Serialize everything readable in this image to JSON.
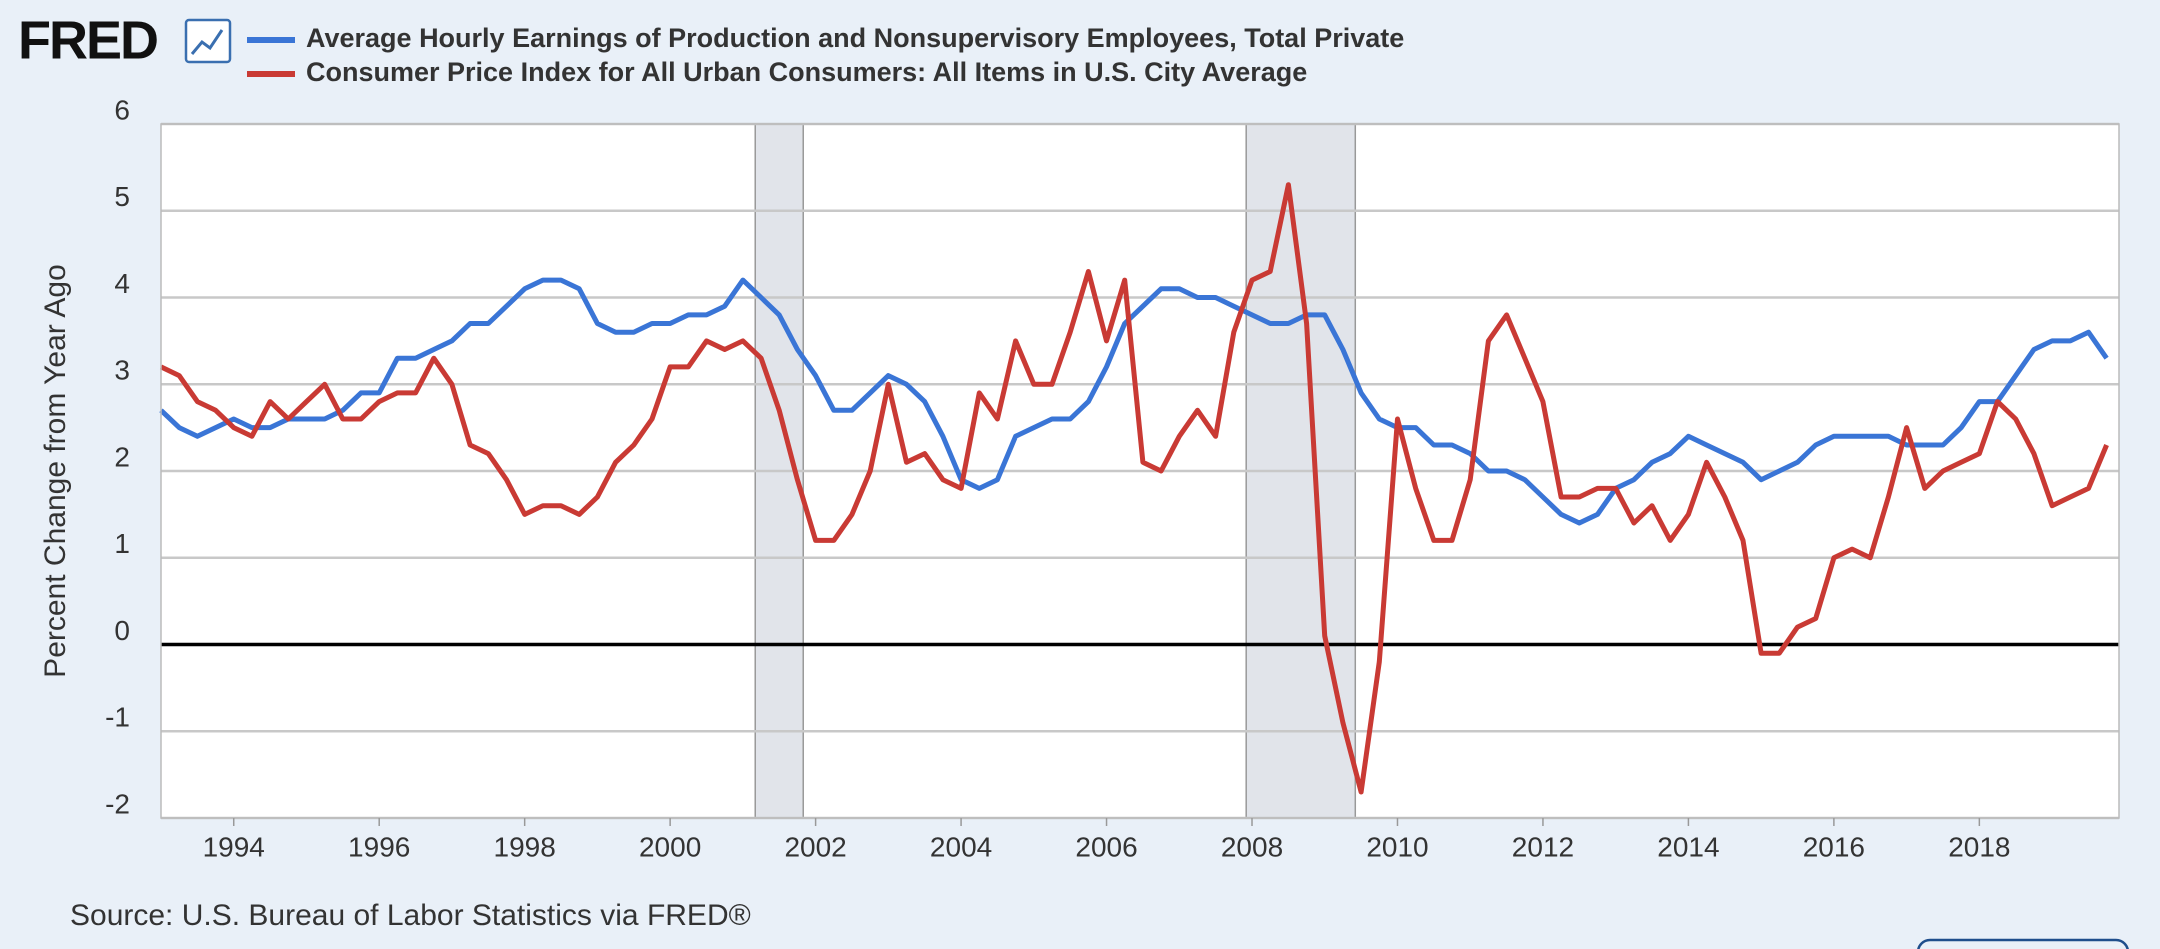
{
  "chart_data": {
    "type": "line",
    "logo": "FRED",
    "source": "Source: U.S. Bureau of Labor Statistics via FRED®",
    "y_label": "Percent Change from Year Ago",
    "xlim": [
      1993,
      2019.92
    ],
    "ylim": [
      -2,
      6
    ],
    "xticks": [
      1994,
      1996,
      1998,
      2000,
      2002,
      2004,
      2006,
      2008,
      2010,
      2012,
      2014,
      2016,
      2018
    ],
    "yticks": [
      -2,
      -1,
      0,
      1,
      2,
      3,
      4,
      5,
      6
    ],
    "grid": true,
    "recessions": [
      [
        2001.17,
        2001.83
      ],
      [
        2007.92,
        2009.42
      ]
    ],
    "x": [
      1993,
      1993.25,
      1993.5,
      1993.75,
      1994,
      1994.25,
      1994.5,
      1994.75,
      1995,
      1995.25,
      1995.5,
      1995.75,
      1996,
      1996.25,
      1996.5,
      1996.75,
      1997,
      1997.25,
      1997.5,
      1997.75,
      1998,
      1998.25,
      1998.5,
      1998.75,
      1999,
      1999.25,
      1999.5,
      1999.75,
      2000,
      2000.25,
      2000.5,
      2000.75,
      2001,
      2001.25,
      2001.5,
      2001.75,
      2002,
      2002.25,
      2002.5,
      2002.75,
      2003,
      2003.25,
      2003.5,
      2003.75,
      2004,
      2004.25,
      2004.5,
      2004.75,
      2005,
      2005.25,
      2005.5,
      2005.75,
      2006,
      2006.25,
      2006.5,
      2006.75,
      2007,
      2007.25,
      2007.5,
      2007.75,
      2008,
      2008.25,
      2008.5,
      2008.75,
      2009,
      2009.25,
      2009.5,
      2009.75,
      2010,
      2010.25,
      2010.5,
      2010.75,
      2011,
      2011.25,
      2011.5,
      2011.75,
      2012,
      2012.25,
      2012.5,
      2012.75,
      2013,
      2013.25,
      2013.5,
      2013.75,
      2014,
      2014.25,
      2014.5,
      2014.75,
      2015,
      2015.25,
      2015.5,
      2015.75,
      2016,
      2016.25,
      2016.5,
      2016.75,
      2017,
      2017.25,
      2017.5,
      2017.75,
      2018,
      2018.25,
      2018.5,
      2018.75,
      2019,
      2019.25,
      2019.5,
      2019.75
    ],
    "series": [
      {
        "name": "Average Hourly Earnings of Production and Nonsupervisory Employees, Total Private",
        "color": "#3a75d6",
        "values": [
          2.7,
          2.5,
          2.4,
          2.5,
          2.6,
          2.5,
          2.5,
          2.6,
          2.6,
          2.6,
          2.7,
          2.9,
          2.9,
          3.3,
          3.3,
          3.4,
          3.5,
          3.7,
          3.7,
          3.9,
          4.1,
          4.2,
          4.2,
          4.1,
          3.7,
          3.6,
          3.6,
          3.7,
          3.7,
          3.8,
          3.8,
          3.9,
          4.2,
          4.0,
          3.8,
          3.4,
          3.1,
          2.7,
          2.7,
          2.9,
          3.1,
          3.0,
          2.8,
          2.4,
          1.9,
          1.8,
          1.9,
          2.4,
          2.5,
          2.6,
          2.6,
          2.8,
          3.2,
          3.7,
          3.9,
          4.1,
          4.1,
          4.0,
          4.0,
          3.9,
          3.8,
          3.7,
          3.7,
          3.8,
          3.8,
          3.4,
          2.9,
          2.6,
          2.5,
          2.5,
          2.3,
          2.3,
          2.2,
          2.0,
          2.0,
          1.9,
          1.7,
          1.5,
          1.4,
          1.5,
          1.8,
          1.9,
          2.1,
          2.2,
          2.4,
          2.3,
          2.2,
          2.1,
          1.9,
          2.0,
          2.1,
          2.3,
          2.4,
          2.4,
          2.4,
          2.4,
          2.3,
          2.3,
          2.3,
          2.5,
          2.8,
          2.8,
          3.1,
          3.4,
          3.5,
          3.5,
          3.6,
          3.3
        ]
      },
      {
        "name": "Consumer Price Index for All Urban Consumers: All Items in U.S. City Average",
        "color": "#c93a34",
        "values": [
          3.2,
          3.1,
          2.8,
          2.7,
          2.5,
          2.4,
          2.8,
          2.6,
          2.8,
          3.0,
          2.6,
          2.6,
          2.8,
          2.9,
          2.9,
          3.3,
          3.0,
          2.3,
          2.2,
          1.9,
          1.5,
          1.6,
          1.6,
          1.5,
          1.7,
          2.1,
          2.3,
          2.6,
          3.2,
          3.2,
          3.5,
          3.4,
          3.5,
          3.3,
          2.7,
          1.9,
          1.2,
          1.2,
          1.5,
          2.0,
          3.0,
          2.1,
          2.2,
          1.9,
          1.8,
          2.9,
          2.6,
          3.5,
          3.0,
          3.0,
          3.6,
          4.3,
          3.5,
          4.2,
          2.1,
          2.0,
          2.4,
          2.7,
          2.4,
          3.6,
          4.2,
          4.3,
          5.3,
          3.7,
          0.1,
          -0.9,
          -1.7,
          -0.2,
          2.6,
          1.8,
          1.2,
          1.2,
          1.9,
          3.5,
          3.8,
          3.3,
          2.8,
          1.7,
          1.7,
          1.8,
          1.8,
          1.4,
          1.6,
          1.2,
          1.5,
          2.1,
          1.7,
          1.2,
          -0.1,
          -0.1,
          0.2,
          0.3,
          1.0,
          1.1,
          1.0,
          1.7,
          2.5,
          1.8,
          2.0,
          2.1,
          2.2,
          2.8,
          2.6,
          2.2,
          1.6,
          1.7,
          1.8,
          2.3
        ]
      }
    ]
  }
}
